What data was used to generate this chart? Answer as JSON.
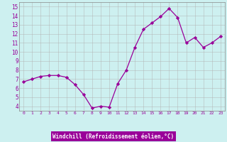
{
  "x": [
    0,
    1,
    2,
    3,
    4,
    5,
    6,
    7,
    8,
    9,
    10,
    11,
    12,
    13,
    14,
    15,
    16,
    17,
    18,
    19,
    20,
    21,
    22,
    23
  ],
  "y": [
    6.7,
    7.0,
    7.3,
    7.4,
    7.4,
    7.2,
    6.4,
    5.3,
    3.8,
    4.0,
    3.9,
    6.5,
    8.0,
    10.5,
    12.5,
    13.2,
    13.9,
    14.8,
    13.8,
    11.0,
    11.6,
    10.5,
    11.0,
    11.7
  ],
  "line_color": "#990099",
  "marker": "D",
  "marker_size": 2.2,
  "bg_color": "#cdf0f0",
  "grid_color": "#b0b0b0",
  "xlabel": "Windchill (Refroidissement éolien,°C)",
  "xlabel_color": "#ffffff",
  "xlabel_bg": "#990099",
  "ylim": [
    3.5,
    15.5
  ],
  "xlim": [
    -0.5,
    23.5
  ],
  "yticks": [
    4,
    5,
    6,
    7,
    8,
    9,
    10,
    11,
    12,
    13,
    14,
    15
  ],
  "xticks": [
    0,
    1,
    2,
    3,
    4,
    5,
    6,
    7,
    8,
    9,
    10,
    11,
    12,
    13,
    14,
    15,
    16,
    17,
    18,
    19,
    20,
    21,
    22,
    23
  ]
}
